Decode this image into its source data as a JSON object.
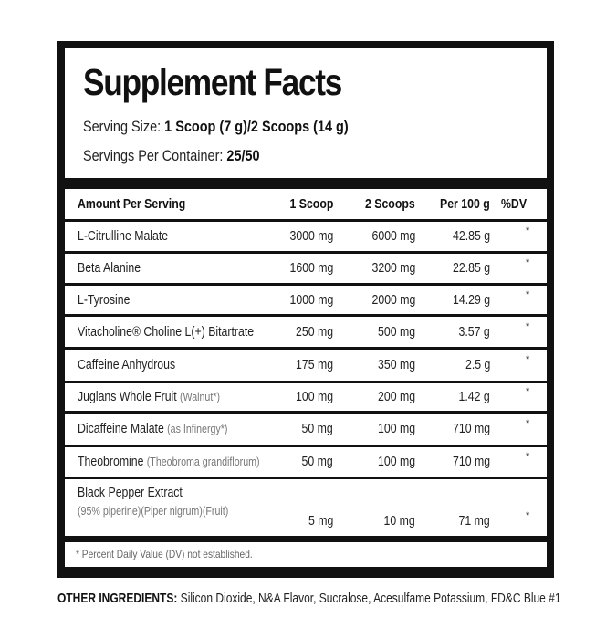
{
  "title": "Supplement Facts",
  "serving_size_label": "Serving Size: ",
  "serving_size_value": "1 Scoop (7 g)/2 Scoops (14 g)",
  "servings_label": "Servings Per Container: ",
  "servings_value": "25/50",
  "columns": [
    "Amount Per Serving",
    "1 Scoop",
    "2 Scoops",
    "Per 100 g",
    "%DV"
  ],
  "rows": [
    {
      "name": "L-Citrulline Malate",
      "sub": "",
      "s1": "3000 mg",
      "s2": "6000 mg",
      "p100": "42.85 g",
      "dv": "*"
    },
    {
      "name": "Beta Alanine",
      "sub": "",
      "s1": "1600 mg",
      "s2": "3200 mg",
      "p100": "22.85 g",
      "dv": "*"
    },
    {
      "name": "L-Tyrosine",
      "sub": "",
      "s1": "1000 mg",
      "s2": "2000 mg",
      "p100": "14.29 g",
      "dv": "*"
    },
    {
      "name": "Vitacholine® Choline L(+) Bitartrate",
      "sub": "",
      "s1": "250 mg",
      "s2": "500 mg",
      "p100": "3.57 g",
      "dv": "*"
    },
    {
      "name": "Caffeine Anhydrous",
      "sub": "",
      "s1": "175 mg",
      "s2": "350 mg",
      "p100": "2.5 g",
      "dv": "*"
    },
    {
      "name": "Juglans Whole Fruit",
      "sub": "(Walnut*)",
      "s1": "100 mg",
      "s2": "200 mg",
      "p100": "1.42 g",
      "dv": "*"
    },
    {
      "name": "Dicaffeine Malate",
      "sub": "(as Infinergy*)",
      "s1": "50 mg",
      "s2": "100 mg",
      "p100": "710 mg",
      "dv": "*"
    },
    {
      "name": "Theobromine",
      "sub": "(Theobroma grandiflorum)",
      "s1": "50 mg",
      "s2": "100 mg",
      "p100": "710 mg",
      "dv": "*"
    },
    {
      "name": "Black Pepper Extract",
      "sub": "(95% piperine)(Piper nigrum)(Fruit)",
      "s1": "5 mg",
      "s2": "10 mg",
      "p100": "71 mg",
      "dv": "*"
    }
  ],
  "footnote": "* Percent Daily Value (DV) not established.",
  "other_label": "OTHER INGREDIENTS:",
  "other_value": " Silicon Dioxide, N&A Flavor, Sucralose, Acesulfame Potassium, FD&C Blue #1"
}
